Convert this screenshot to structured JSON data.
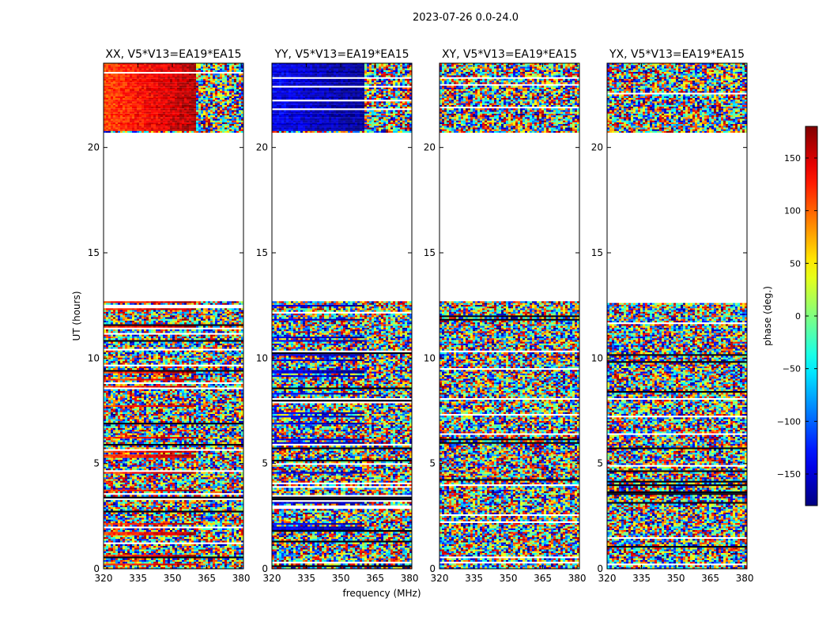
{
  "chart_data": {
    "type": "heatmap",
    "suptitle": "2023-07-26 0.0-24.0",
    "xlabel": "frequency (MHz)",
    "ylabel": "UT (hours)",
    "xlim": [
      320,
      381
    ],
    "ylim": [
      0,
      24
    ],
    "xticks": [
      320,
      335,
      350,
      365,
      380
    ],
    "yticks": [
      0,
      5,
      10,
      15,
      20
    ],
    "colorbar": {
      "label": "phase (deg.)",
      "range": [
        -180,
        180
      ],
      "ticks": [
        150,
        100,
        50,
        0,
        -50,
        -100,
        -150
      ],
      "tick_labels": [
        "150",
        "100",
        "50",
        "0",
        "−50",
        "−100",
        "−150"
      ],
      "colormap": "jet"
    },
    "data_segments_hours": [
      [
        0.0,
        12.7
      ],
      [
        20.7,
        24.0
      ]
    ],
    "blank_interval_hours": [
      12.7,
      20.7
    ],
    "panels": [
      {
        "title": "XX, V5*V13=EA19*EA15",
        "coherent_phase_deg": {
          "start": 110,
          "end": 165,
          "until_mhz": 360
        }
      },
      {
        "title": "YY, V5*V13=EA19*EA15",
        "coherent_phase_deg": {
          "start": -140,
          "end": -175,
          "until_mhz": 360
        }
      },
      {
        "title": "XY, V5*V13=EA19*EA15",
        "coherent_phase_deg": null
      },
      {
        "title": "YX, V5*V13=EA19*EA15",
        "coherent_phase_deg": null
      }
    ]
  }
}
